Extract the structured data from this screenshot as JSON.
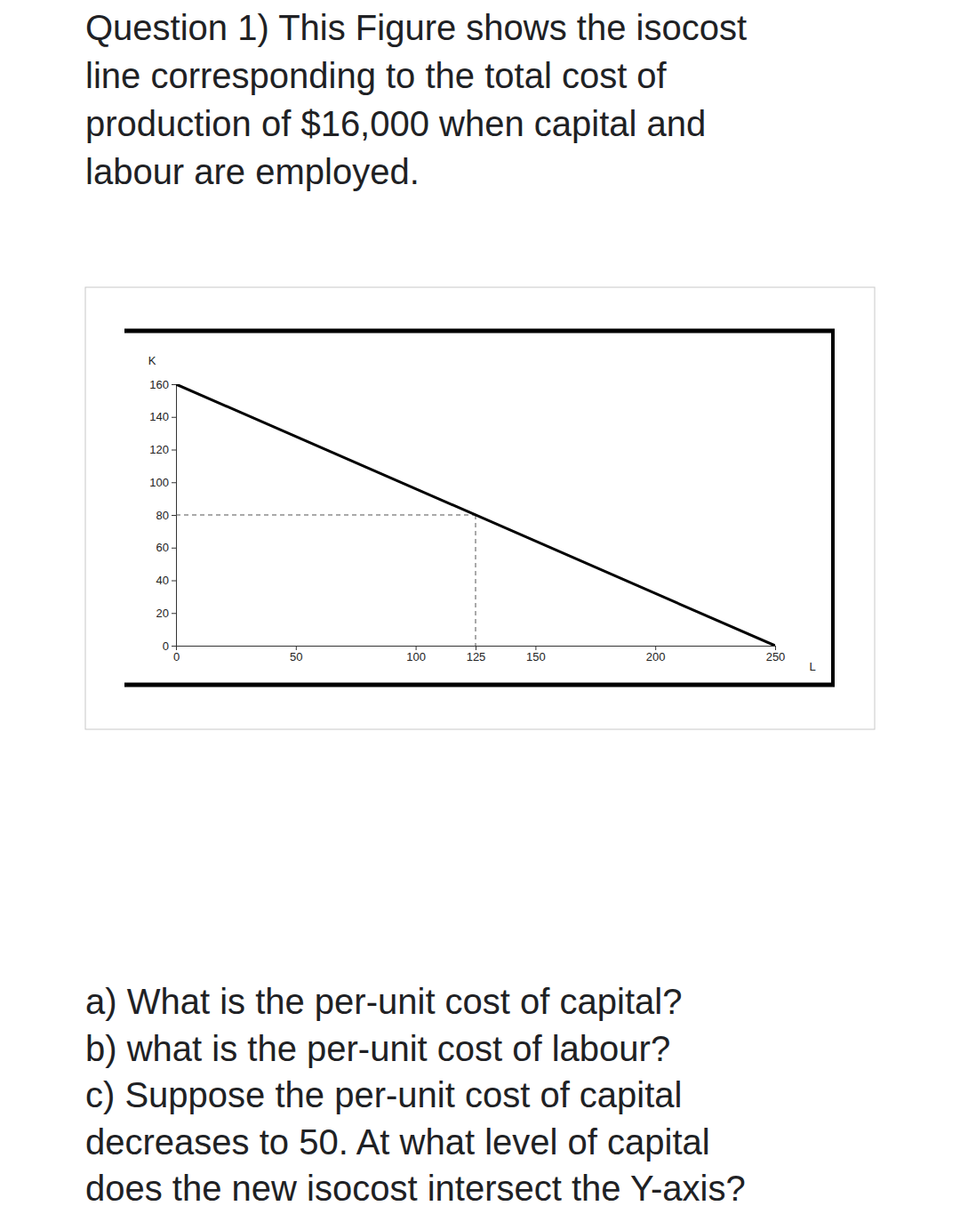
{
  "question": {
    "lines": [
      "Question 1) This Figure shows the isocost",
      "line corresponding to the total cost of",
      "production of $16,000 when capital and",
      "labour are employed."
    ],
    "parts": [
      "a) What is the per-unit cost of capital?",
      "b) what is the per-unit cost of labour?",
      "c) Suppose the per-unit cost of capital",
      "decreases to 50. At what level of capital",
      "does the new isocost intersect the Y-axis?"
    ]
  },
  "chart_data": {
    "type": "line",
    "x_label": "L",
    "y_label": "K",
    "x": [
      0,
      250
    ],
    "values": [
      160,
      0
    ],
    "color": "#000000",
    "xlim": [
      0,
      250
    ],
    "ylim": [
      0,
      160
    ],
    "xticks": [
      0,
      50,
      100,
      125,
      150,
      200,
      250
    ],
    "yticks": [
      0,
      20,
      40,
      60,
      80,
      100,
      120,
      140,
      160
    ],
    "guides": {
      "x": 125,
      "y": 80
    },
    "grid": false
  }
}
